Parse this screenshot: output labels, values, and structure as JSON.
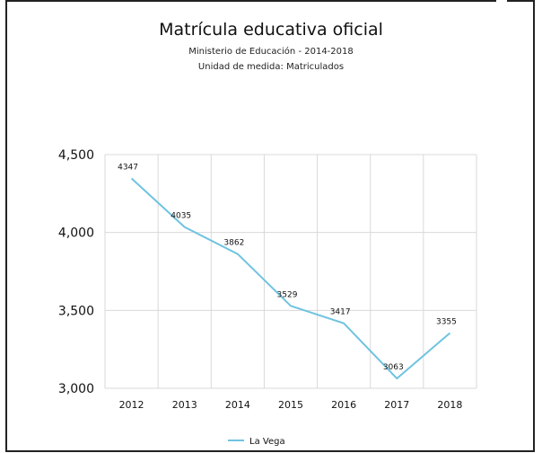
{
  "chart_data": {
    "type": "line",
    "title": "Matrícula educativa oficial",
    "subtitle": "Ministerio de Educación - 2014-2018",
    "unit_label": "Unidad de medida: Matriculados",
    "x": [
      "2012",
      "2013",
      "2014",
      "2015",
      "2016",
      "2017",
      "2018"
    ],
    "series": [
      {
        "name": "La Vega",
        "values": [
          4347,
          4035,
          3862,
          3529,
          3417,
          3063,
          3355
        ],
        "color": "#6fc3e0"
      }
    ],
    "ylim": [
      3000,
      4500
    ],
    "yticks": [
      {
        "value": 3000,
        "label": "3,000"
      },
      {
        "value": 3500,
        "label": "3,500"
      },
      {
        "value": 4000,
        "label": "4,000"
      },
      {
        "value": 4500,
        "label": "4,500"
      }
    ],
    "grid": true,
    "legend_position": "bottom"
  }
}
